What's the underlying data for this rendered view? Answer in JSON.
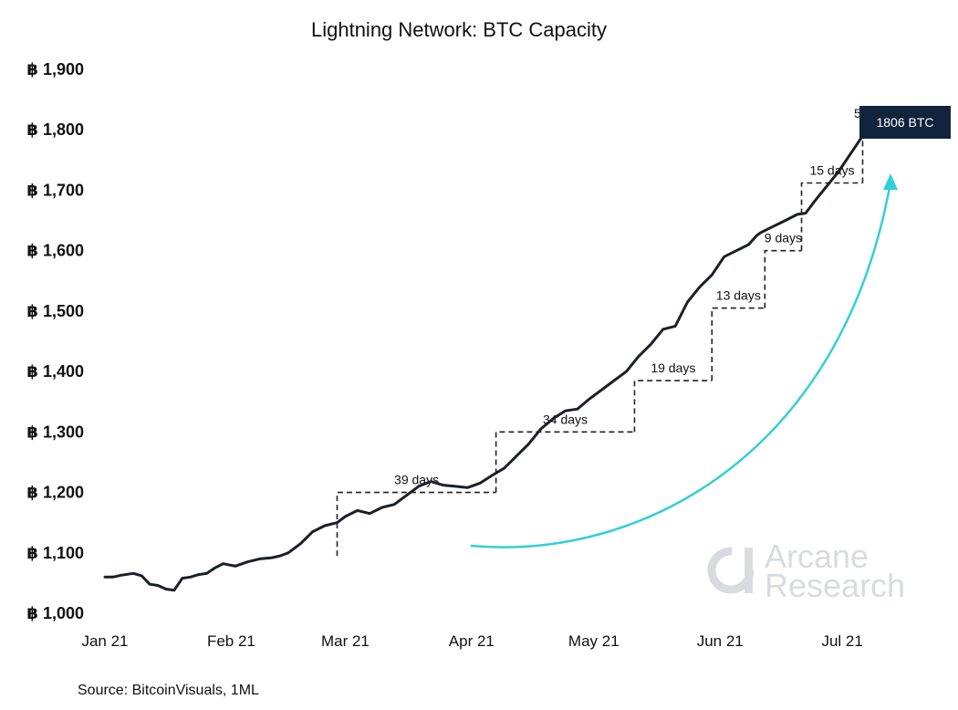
{
  "chart_data": {
    "type": "line",
    "title": "Lightning Network: BTC Capacity",
    "ylim": [
      1000,
      1900
    ],
    "y_ticks": [
      1000,
      1100,
      1200,
      1300,
      1400,
      1500,
      1600,
      1700,
      1800,
      1900
    ],
    "y_tick_labels": [
      "฿ 1,000",
      "฿ 1,100",
      "฿ 1,200",
      "฿ 1,300",
      "฿ 1,400",
      "฿ 1,500",
      "฿ 1,600",
      "฿ 1,700",
      "฿ 1,800",
      "฿ 1,900"
    ],
    "x_ticks": [
      "2021-01-01",
      "2021-02-01",
      "2021-03-01",
      "2021-04-01",
      "2021-05-01",
      "2021-06-01",
      "2021-07-01"
    ],
    "x_tick_labels": [
      "Jan 21",
      "Feb 21",
      "Mar 21",
      "Apr 21",
      "May 21",
      "Jun 21",
      "Jul 21"
    ],
    "xlim": [
      "2021-01-01",
      "2021-07-20"
    ],
    "grid": false,
    "series": [
      {
        "color": "#1b1f2a",
        "x": [
          "2021-01-01",
          "2021-01-03",
          "2021-01-05",
          "2021-01-08",
          "2021-01-10",
          "2021-01-12",
          "2021-01-14",
          "2021-01-16",
          "2021-01-18",
          "2021-01-20",
          "2021-01-22",
          "2021-01-24",
          "2021-01-26",
          "2021-01-28",
          "2021-01-30",
          "2021-02-02",
          "2021-02-05",
          "2021-02-08",
          "2021-02-11",
          "2021-02-13",
          "2021-02-15",
          "2021-02-18",
          "2021-02-21",
          "2021-02-24",
          "2021-02-27",
          "2021-03-01",
          "2021-03-04",
          "2021-03-07",
          "2021-03-10",
          "2021-03-13",
          "2021-03-16",
          "2021-03-19",
          "2021-03-22",
          "2021-03-25",
          "2021-03-28",
          "2021-03-31",
          "2021-04-03",
          "2021-04-06",
          "2021-04-09",
          "2021-04-12",
          "2021-04-15",
          "2021-04-18",
          "2021-04-21",
          "2021-04-24",
          "2021-04-27",
          "2021-04-30",
          "2021-05-03",
          "2021-05-06",
          "2021-05-09",
          "2021-05-12",
          "2021-05-15",
          "2021-05-18",
          "2021-05-21",
          "2021-05-24",
          "2021-05-27",
          "2021-05-30",
          "2021-06-02",
          "2021-06-05",
          "2021-06-08",
          "2021-06-10",
          "2021-06-11",
          "2021-06-14",
          "2021-06-17",
          "2021-06-20",
          "2021-06-22",
          "2021-06-24",
          "2021-06-27",
          "2021-06-30",
          "2021-07-03",
          "2021-07-06",
          "2021-07-08",
          "2021-07-11",
          "2021-07-13",
          "2021-07-15",
          "2021-07-17"
        ],
        "values": [
          1060,
          1060,
          1063,
          1066,
          1062,
          1048,
          1046,
          1040,
          1038,
          1058,
          1060,
          1064,
          1066,
          1075,
          1082,
          1078,
          1085,
          1090,
          1092,
          1095,
          1100,
          1115,
          1135,
          1145,
          1150,
          1160,
          1170,
          1165,
          1175,
          1180,
          1195,
          1210,
          1218,
          1212,
          1210,
          1208,
          1215,
          1228,
          1240,
          1260,
          1280,
          1305,
          1322,
          1335,
          1338,
          1355,
          1370,
          1385,
          1400,
          1425,
          1445,
          1470,
          1475,
          1515,
          1540,
          1560,
          1590,
          1600,
          1610,
          1625,
          1630,
          1640,
          1650,
          1660,
          1662,
          1680,
          1705,
          1730,
          1760,
          1790,
          1806,
          1806,
          1806,
          1806,
          1806
        ]
      }
    ],
    "annotations": [
      {
        "label": "39 days",
        "from": "2021-02-27",
        "to": "2021-04-07",
        "y_low": 1095,
        "y_high": 1200
      },
      {
        "label": "34 days",
        "from": "2021-04-07",
        "to": "2021-05-11",
        "y_low": 1200,
        "y_high": 1300
      },
      {
        "label": "19 days",
        "from": "2021-05-11",
        "to": "2021-05-30",
        "y_low": 1300,
        "y_high": 1385
      },
      {
        "label": "13 days",
        "from": "2021-05-30",
        "to": "2021-06-12",
        "y_low": 1385,
        "y_high": 1505
      },
      {
        "label": "9 days",
        "from": "2021-06-12",
        "to": "2021-06-21",
        "y_low": 1505,
        "y_high": 1600
      },
      {
        "label": "15 days",
        "from": "2021-06-21",
        "to": "2021-07-06",
        "y_low": 1600,
        "y_high": 1712
      },
      {
        "label": "5 days",
        "from": "2021-07-06",
        "to": "2021-07-11",
        "y_low": 1712,
        "y_high": 1806
      }
    ],
    "callout": {
      "label": "1806 BTC",
      "color": "#12233d"
    },
    "trend_arrow_color": "#33cfd7",
    "source": "Source: BitcoinVisuals, 1ML"
  },
  "watermark": {
    "line1": "Arcane",
    "line2": "Research",
    "color": "#d9dcdf"
  }
}
